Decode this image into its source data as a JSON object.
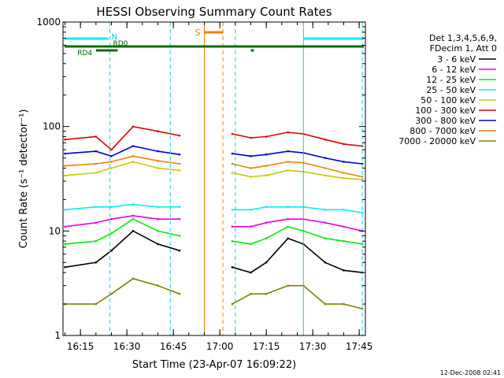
{
  "chart_data": {
    "type": "line",
    "title": "HESSI Observing Summary Count Rates",
    "xlabel": "Start Time (23-Apr-07 16:09:22)",
    "ylabel": "Count Rate (s⁻¹ detector⁻¹)",
    "y_scale": "log",
    "ylim": [
      1,
      1000
    ],
    "xlim": [
      "16:09:22",
      "17:47:00"
    ],
    "x_tick_labels": [
      "16:15",
      "16:30",
      "16:45",
      "17:00",
      "17:15",
      "17:30",
      "17:45"
    ],
    "y_tick_labels": [
      "1",
      "10",
      "100",
      "1000"
    ],
    "legend_title_lines": [
      "Det 1,3,4,5,6,9,",
      "FDecim 1, Att 0"
    ],
    "legend_placement": "right",
    "flags": {
      "night_label": "N",
      "rd0_label": "RD0",
      "rd4_label": "RD4",
      "saa_label": "S"
    },
    "footer_date": "12-Dec-2008 02:41",
    "series": [
      {
        "name": "3 - 6 keV",
        "color": "#000000",
        "x": [
          "16:10",
          "16:20",
          "16:25",
          "16:32",
          "16:40",
          "16:47",
          "17:04",
          "17:10",
          "17:15",
          "17:22",
          "17:27",
          "17:34",
          "17:40",
          "17:46"
        ],
        "values": [
          4.5,
          5.0,
          6.5,
          10.0,
          7.5,
          6.5,
          4.5,
          4.0,
          5.0,
          8.5,
          7.5,
          5.0,
          4.2,
          4.0
        ]
      },
      {
        "name": "6 - 12 keV",
        "color": "#e800e8",
        "x": [
          "16:10",
          "16:20",
          "16:25",
          "16:32",
          "16:40",
          "16:47",
          "17:04",
          "17:10",
          "17:15",
          "17:22",
          "17:27",
          "17:34",
          "17:40",
          "17:46"
        ],
        "values": [
          11,
          12,
          13,
          14,
          13,
          13,
          11,
          11,
          12,
          13,
          13,
          12,
          11,
          10
        ]
      },
      {
        "name": "12 - 25 keV",
        "color": "#00ee00",
        "x": [
          "16:10",
          "16:20",
          "16:25",
          "16:32",
          "16:40",
          "16:47",
          "17:04",
          "17:10",
          "17:15",
          "17:22",
          "17:27",
          "17:34",
          "17:40",
          "17:46"
        ],
        "values": [
          7.5,
          8.0,
          9.5,
          13,
          10,
          9,
          8,
          7.5,
          8.5,
          11,
          10,
          8.5,
          8,
          7.5
        ]
      },
      {
        "name": "25 - 50 keV",
        "color": "#00f0f0",
        "x": [
          "16:10",
          "16:20",
          "16:25",
          "16:32",
          "16:40",
          "16:47",
          "17:04",
          "17:10",
          "17:15",
          "17:22",
          "17:27",
          "17:34",
          "17:40",
          "17:46"
        ],
        "values": [
          16,
          17,
          17,
          18,
          17,
          17,
          16,
          16,
          17,
          17,
          17,
          16,
          16,
          15
        ]
      },
      {
        "name": "50 - 100 keV",
        "color": "#c8c800",
        "x": [
          "16:10",
          "16:20",
          "16:25",
          "16:32",
          "16:40",
          "16:47",
          "17:04",
          "17:10",
          "17:15",
          "17:22",
          "17:27",
          "17:34",
          "17:40",
          "17:46"
        ],
        "values": [
          34,
          36,
          40,
          46,
          40,
          38,
          36,
          33,
          34,
          38,
          37,
          34,
          32,
          31
        ]
      },
      {
        "name": "100 - 300 keV",
        "color": "#e00000",
        "x": [
          "16:10",
          "16:20",
          "16:25",
          "16:32",
          "16:40",
          "16:47",
          "17:04",
          "17:10",
          "17:15",
          "17:22",
          "17:27",
          "17:34",
          "17:40",
          "17:46"
        ],
        "values": [
          75,
          80,
          60,
          100,
          90,
          82,
          85,
          78,
          80,
          88,
          85,
          75,
          68,
          65
        ]
      },
      {
        "name": "300 - 800 keV",
        "color": "#0000d0",
        "x": [
          "16:10",
          "16:20",
          "16:25",
          "16:32",
          "16:40",
          "16:47",
          "17:04",
          "17:10",
          "17:15",
          "17:22",
          "17:27",
          "17:34",
          "17:40",
          "17:46"
        ],
        "values": [
          55,
          58,
          52,
          65,
          58,
          54,
          55,
          52,
          54,
          58,
          56,
          50,
          46,
          44
        ]
      },
      {
        "name": "800 - 7000 keV",
        "color": "#f08000",
        "x": [
          "16:10",
          "16:20",
          "16:25",
          "16:32",
          "16:40",
          "16:47",
          "17:04",
          "17:10",
          "17:15",
          "17:22",
          "17:27",
          "17:34",
          "17:40",
          "17:46"
        ],
        "values": [
          42,
          44,
          46,
          52,
          47,
          44,
          44,
          40,
          42,
          46,
          45,
          40,
          36,
          33
        ]
      },
      {
        "name": "7000 - 20000 keV",
        "color": "#808000",
        "x": [
          "16:10",
          "16:20",
          "16:25",
          "16:32",
          "16:40",
          "16:47",
          "17:04",
          "17:10",
          "17:15",
          "17:22",
          "17:27",
          "17:34",
          "17:40",
          "17:46"
        ],
        "values": [
          2,
          2,
          2.5,
          3.5,
          3,
          2.5,
          2,
          2.5,
          2.5,
          3,
          3,
          2,
          2,
          1.8
        ]
      }
    ]
  }
}
